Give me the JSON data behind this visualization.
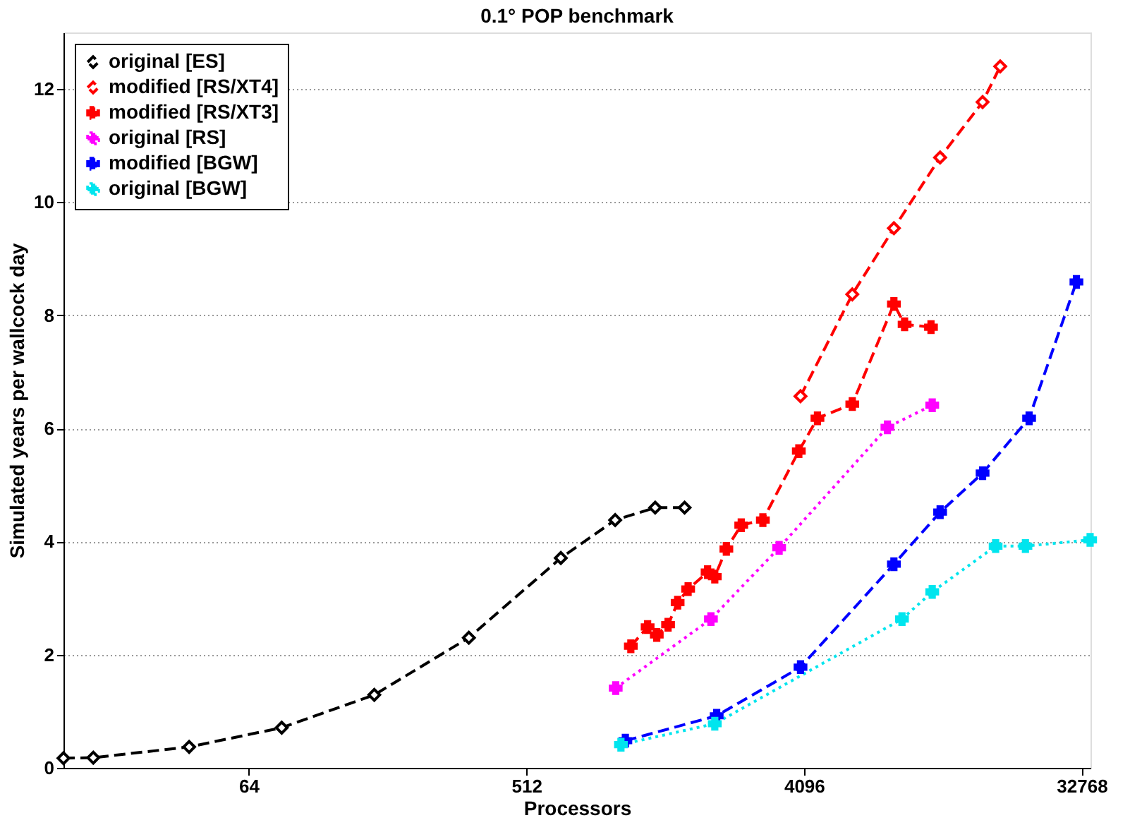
{
  "chart_data": {
    "type": "line",
    "title": "0.1° POP benchmark",
    "xlabel": "Processors",
    "ylabel": "Simulated years per wallcock day",
    "log": "x",
    "xlim": [
      16,
      35000
    ],
    "xticks": [
      64,
      512,
      4096,
      32768
    ],
    "ylim": [
      0,
      13
    ],
    "yticks": [
      0,
      2,
      4,
      6,
      8,
      10,
      12
    ],
    "grid": "y",
    "legend": "top left",
    "series": [
      {
        "name": "original [ES]",
        "color": "#000000",
        "marker": "diamond",
        "line_style": "dashed",
        "x": [
          16,
          20,
          41,
          82,
          164,
          333,
          663,
          996,
          1344,
          1675
        ],
        "values": [
          0.17,
          0.18,
          0.37,
          0.71,
          1.29,
          2.3,
          3.71,
          4.38,
          4.6,
          4.6
        ]
      },
      {
        "name": "modified [RS/XT4]",
        "color": "#ff0000",
        "marker": "diamond",
        "line_style": "dashed",
        "x": [
          3990,
          5880,
          8030,
          11350,
          15600,
          17800
        ],
        "values": [
          6.57,
          8.37,
          9.54,
          10.79,
          11.77,
          12.4
        ]
      },
      {
        "name": "modified [RS/XT3]",
        "color": "#ff0000",
        "marker": "cross",
        "line_style": "dashed",
        "x": [
          1120,
          1270,
          1360,
          1480,
          1590,
          1720,
          1990,
          2100,
          2290,
          2560,
          3010,
          3940,
          4530,
          5880,
          8030,
          8700,
          10600
        ],
        "values": [
          2.15,
          2.49,
          2.35,
          2.53,
          2.92,
          3.16,
          3.46,
          3.38,
          3.87,
          4.29,
          4.38,
          5.6,
          6.18,
          6.43,
          8.2,
          7.84,
          7.79
        ]
      },
      {
        "name": "original [RS]",
        "color": "#ff00ff",
        "marker": "cross",
        "line_style": "dotted",
        "x": [
          1000,
          2040,
          3400,
          7650,
          10700
        ],
        "values": [
          1.41,
          2.63,
          3.89,
          6.02,
          6.41
        ]
      },
      {
        "name": "modified [BGW]",
        "color": "#0000ff",
        "marker": "cross",
        "line_style": "dashed",
        "x": [
          1075,
          2130,
          3990,
          8030,
          11350,
          15600,
          22100,
          31500
        ],
        "values": [
          0.48,
          0.92,
          1.78,
          3.6,
          4.52,
          5.21,
          6.18,
          8.59
        ]
      },
      {
        "name": "original [BGW]",
        "color": "#00e5ee",
        "marker": "cross",
        "line_style": "dotted",
        "x": [
          1040,
          2100,
          8530,
          10700,
          17200,
          21500,
          34900
        ],
        "values": [
          0.41,
          0.78,
          2.63,
          3.11,
          3.92,
          3.92,
          4.03
        ]
      }
    ]
  }
}
